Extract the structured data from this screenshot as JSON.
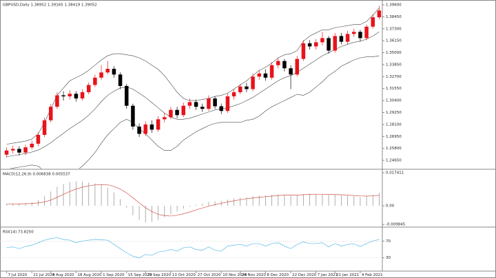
{
  "chart_data": [
    {
      "type": "candlestick",
      "title": "GBPUSD,Daily  1.38952 1.39165 1.38419 1.39052",
      "categories": [
        "7 Jul 2020",
        null,
        null,
        null,
        "21 Jul 2020",
        null,
        null,
        "4 Aug 2020",
        null,
        null,
        null,
        "18 Aug 2020",
        null,
        null,
        null,
        "1 Sep 2020",
        null,
        null,
        null,
        "15 Sep 2020",
        null,
        null,
        "29 Sep 2020",
        null,
        null,
        null,
        "13 Oct 2020",
        null,
        null,
        null,
        "27 Oct 2020",
        null,
        null,
        null,
        "10 Nov 2020",
        null,
        null,
        "24 Nov 2020",
        null,
        null,
        null,
        "8 Dec 2020",
        null,
        null,
        null,
        "22 Dec 2020",
        null,
        null,
        null,
        "7 Jan 2021",
        null,
        null,
        "21 Jan 2021",
        null,
        null,
        null,
        "4 Feb 2021",
        null,
        null,
        null
      ],
      "open": [
        1.252,
        1.256,
        1.2575,
        1.254,
        1.259,
        1.2625,
        1.271,
        1.285,
        1.298,
        1.309,
        1.308,
        1.3105,
        1.306,
        1.312,
        1.319,
        1.326,
        1.331,
        1.3345,
        1.329,
        1.318,
        1.299,
        1.279,
        1.272,
        1.281,
        1.276,
        1.286,
        1.288,
        1.295,
        1.29,
        1.299,
        1.3025,
        1.298,
        1.296,
        1.306,
        1.2985,
        1.294,
        1.308,
        1.312,
        1.3175,
        1.315,
        1.327,
        1.33,
        1.326,
        1.338,
        1.342,
        1.335,
        1.329,
        1.344,
        1.359,
        1.356,
        1.36,
        1.364,
        1.352,
        1.366,
        1.3605,
        1.368,
        1.37,
        1.364,
        1.375,
        1.384
      ],
      "high": [
        1.259,
        1.2605,
        1.26,
        1.2615,
        1.2655,
        1.2735,
        1.2875,
        1.3005,
        1.312,
        1.313,
        1.314,
        1.313,
        1.315,
        1.3215,
        1.329,
        1.338,
        1.342,
        1.337,
        1.331,
        1.32,
        1.301,
        1.282,
        1.284,
        1.285,
        1.289,
        1.292,
        1.298,
        1.298,
        1.302,
        1.306,
        1.305,
        1.301,
        1.309,
        1.308,
        1.301,
        1.311,
        1.315,
        1.32,
        1.321,
        1.33,
        1.333,
        1.334,
        1.341,
        1.345,
        1.344,
        1.338,
        1.347,
        1.362,
        1.362,
        1.363,
        1.37,
        1.366,
        1.369,
        1.369,
        1.371,
        1.373,
        1.372,
        1.377,
        1.387,
        1.395
      ],
      "low": [
        1.249,
        1.253,
        1.251,
        1.2515,
        1.257,
        1.26,
        1.269,
        1.283,
        1.296,
        1.304,
        1.305,
        1.303,
        1.304,
        1.31,
        1.317,
        1.324,
        1.329,
        1.326,
        1.315,
        1.296,
        1.276,
        1.269,
        1.27,
        1.273,
        1.274,
        1.283,
        1.286,
        1.287,
        1.288,
        1.296,
        1.295,
        1.293,
        1.294,
        1.296,
        1.291,
        1.292,
        1.305,
        1.31,
        1.312,
        1.313,
        1.324,
        1.323,
        1.324,
        1.335,
        1.332,
        1.315,
        1.327,
        1.342,
        1.353,
        1.353,
        1.357,
        1.349,
        1.35,
        1.358,
        1.358,
        1.365,
        1.361,
        1.362,
        1.373,
        1.382
      ],
      "close": [
        1.256,
        1.2575,
        1.254,
        1.259,
        1.2625,
        1.271,
        1.285,
        1.298,
        1.309,
        1.308,
        1.3105,
        1.306,
        1.312,
        1.319,
        1.326,
        1.331,
        1.3345,
        1.329,
        1.318,
        1.299,
        1.279,
        1.272,
        1.281,
        1.276,
        1.286,
        1.288,
        1.295,
        1.29,
        1.299,
        1.3025,
        1.298,
        1.296,
        1.306,
        1.2985,
        1.294,
        1.308,
        1.312,
        1.3175,
        1.315,
        1.327,
        1.33,
        1.326,
        1.338,
        1.342,
        1.335,
        1.329,
        1.344,
        1.359,
        1.356,
        1.36,
        1.364,
        1.352,
        1.366,
        1.3605,
        1.368,
        1.37,
        1.364,
        1.375,
        1.384,
        1.3905
      ],
      "up_color": "#e8131b",
      "down_color": "#000000",
      "bands": [
        {
          "color": "#444444",
          "values": [
            1.262,
            1.263,
            1.264,
            1.265,
            1.267,
            1.272,
            1.283,
            1.296,
            1.309,
            1.316,
            1.323,
            1.326,
            1.329,
            1.333,
            1.338,
            1.343,
            1.347,
            1.349,
            1.349,
            1.348,
            1.347,
            1.345,
            1.342,
            1.338,
            1.334,
            1.328,
            1.32,
            1.312,
            1.306,
            1.304,
            1.304,
            1.305,
            1.306,
            1.308,
            1.309,
            1.311,
            1.315,
            1.319,
            1.323,
            1.328,
            1.333,
            1.336,
            1.34,
            1.345,
            1.348,
            1.349,
            1.352,
            1.361,
            1.366,
            1.369,
            1.372,
            1.372,
            1.374,
            1.375,
            1.376,
            1.377,
            1.377,
            1.38,
            1.386,
            1.393
          ]
        },
        {
          "color": "#444444",
          "values": [
            1.25,
            1.251,
            1.252,
            1.253,
            1.2545,
            1.2565,
            1.2595,
            1.2635,
            1.268,
            1.2725,
            1.277,
            1.281,
            1.285,
            1.29,
            1.296,
            1.303,
            1.309,
            1.313,
            1.316,
            1.317,
            1.315,
            1.311,
            1.307,
            1.302,
            1.297,
            1.292,
            1.288,
            1.286,
            1.286,
            1.287,
            1.289,
            1.291,
            1.293,
            1.295,
            1.296,
            1.297,
            1.299,
            1.301,
            1.304,
            1.307,
            1.311,
            1.315,
            1.319,
            1.323,
            1.326,
            1.328,
            1.331,
            1.335,
            1.339,
            1.343,
            1.347,
            1.35,
            1.353,
            1.356,
            1.358,
            1.36,
            1.361,
            1.363,
            1.366,
            1.37
          ]
        },
        {
          "color": "#444444",
          "values": [
            1.238,
            1.239,
            1.24,
            1.241,
            1.242,
            1.241,
            1.236,
            1.231,
            1.227,
            1.229,
            1.231,
            1.236,
            1.241,
            1.247,
            1.254,
            1.263,
            1.271,
            1.277,
            1.283,
            1.286,
            1.283,
            1.277,
            1.272,
            1.266,
            1.26,
            1.256,
            1.256,
            1.26,
            1.266,
            1.27,
            1.274,
            1.277,
            1.28,
            1.282,
            1.283,
            1.283,
            1.283,
            1.283,
            1.285,
            1.286,
            1.289,
            1.294,
            1.298,
            1.301,
            1.304,
            1.307,
            1.31,
            1.309,
            1.312,
            1.317,
            1.322,
            1.328,
            1.332,
            1.337,
            1.34,
            1.343,
            1.345,
            1.346,
            1.346,
            1.347
          ]
        }
      ],
      "ylim": [
        1.2386,
        1.3993
      ],
      "yticks": [
        {
          "value": 1.2465,
          "label": "1.24650"
        },
        {
          "value": 1.258,
          "label": "1.25800"
        },
        {
          "value": 1.2695,
          "label": "1.26950"
        },
        {
          "value": 1.281,
          "label": "1.28100"
        },
        {
          "value": 1.2925,
          "label": "1.29250"
        },
        {
          "value": 1.304,
          "label": "1.30400"
        },
        {
          "value": 1.3155,
          "label": "1.31550"
        },
        {
          "value": 1.327,
          "label": "1.32700"
        },
        {
          "value": 1.3385,
          "label": "1.33850"
        },
        {
          "value": 1.35,
          "label": "1.35000"
        },
        {
          "value": 1.3615,
          "label": "1.36150"
        },
        {
          "value": 1.373,
          "label": "1.37300"
        },
        {
          "value": 1.3845,
          "label": "1.38450"
        },
        {
          "value": 1.396,
          "label": "1.39600"
        }
      ],
      "grid": false
    },
    {
      "type": "bar",
      "title": "MACD(12,26,9) 0.006838 0.005537",
      "series": [
        {
          "kind": "bar",
          "color": "#9a9a9a",
          "values": [
            0.001,
            0.0012,
            0.001,
            0.0013,
            0.0018,
            0.003,
            0.005,
            0.0075,
            0.01,
            0.0115,
            0.0125,
            0.0128,
            0.0126,
            0.0122,
            0.0118,
            0.011,
            0.0095,
            0.007,
            0.0035,
            -0.001,
            -0.005,
            -0.0075,
            -0.0088,
            -0.0085,
            -0.0075,
            -0.006,
            -0.0045,
            -0.003,
            -0.0015,
            -0.0005,
            0.0005,
            0.0012,
            0.002,
            0.0024,
            0.0026,
            0.0032,
            0.0038,
            0.0042,
            0.0045,
            0.005,
            0.0054,
            0.0055,
            0.0058,
            0.006,
            0.0058,
            0.0054,
            0.0056,
            0.0062,
            0.0064,
            0.0062,
            0.0062,
            0.0056,
            0.0058,
            0.0055,
            0.0052,
            0.005,
            0.0046,
            0.005,
            0.0058,
            0.0068
          ]
        },
        {
          "kind": "line",
          "color": "#d0524a",
          "values": [
            0.0008,
            0.0009,
            0.001,
            0.0011,
            0.0012,
            0.0015,
            0.002,
            0.003,
            0.0045,
            0.006,
            0.0075,
            0.0088,
            0.0098,
            0.0105,
            0.011,
            0.0112,
            0.011,
            0.0102,
            0.0088,
            0.0068,
            0.0042,
            0.0015,
            -0.001,
            -0.003,
            -0.0045,
            -0.0052,
            -0.0054,
            -0.005,
            -0.0042,
            -0.0033,
            -0.0022,
            -0.0012,
            -0.0002,
            0.0006,
            0.0013,
            0.002,
            0.0026,
            0.0032,
            0.0037,
            0.0041,
            0.0045,
            0.0048,
            0.0051,
            0.0054,
            0.0056,
            0.0056,
            0.0056,
            0.0058,
            0.006,
            0.0061,
            0.0061,
            0.006,
            0.0059,
            0.0058,
            0.0056,
            0.0054,
            0.0052,
            0.0051,
            0.0052,
            0.0055
          ]
        }
      ],
      "ylim": [
        -0.0105,
        0.0185
      ],
      "yticks": [
        {
          "value": 0.017411,
          "label": "0.017411"
        },
        {
          "value": 0,
          "label": "0.00"
        },
        {
          "value": -0.009845,
          "label": "-0.009845"
        }
      ],
      "grid": false
    },
    {
      "type": "line",
      "title": "RSI(14) 73.8250",
      "series": [
        {
          "color": "#55b8e8",
          "values": [
            55,
            56,
            52,
            57,
            60,
            66,
            72,
            76,
            78,
            74,
            72,
            66,
            70,
            72,
            74,
            73,
            72,
            62,
            52,
            42,
            34,
            30,
            38,
            36,
            44,
            46,
            50,
            46,
            54,
            56,
            50,
            48,
            56,
            48,
            46,
            58,
            60,
            62,
            58,
            64,
            64,
            58,
            64,
            66,
            58,
            52,
            62,
            68,
            64,
            64,
            66,
            56,
            64,
            58,
            62,
            63,
            57,
            64,
            70,
            74
          ]
        }
      ],
      "ylim": [
        0,
        100
      ],
      "yticks": [
        70,
        30
      ],
      "grid": true
    }
  ]
}
